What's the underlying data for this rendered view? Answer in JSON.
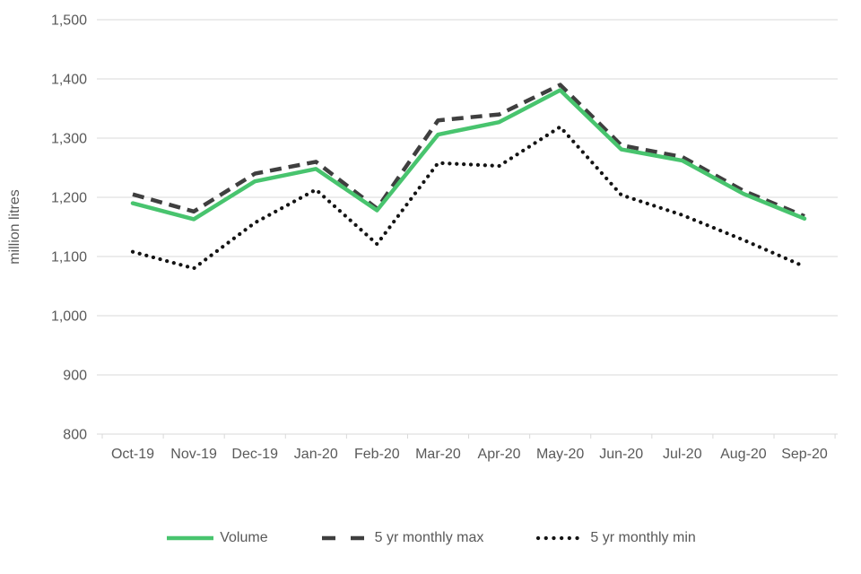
{
  "chart_data": {
    "type": "line",
    "title": "",
    "xlabel": "",
    "ylabel": "million litres",
    "categories": [
      "Oct-19",
      "Nov-19",
      "Dec-19",
      "Jan-20",
      "Feb-20",
      "Mar-20",
      "Apr-20",
      "May-20",
      "Jun-20",
      "Jul-20",
      "Aug-20",
      "Sep-20"
    ],
    "series": [
      {
        "name": "Volume",
        "line_style": "solid",
        "color": "#48c46e",
        "values": [
          1190,
          1163,
          1227,
          1248,
          1178,
          1306,
          1327,
          1381,
          1281,
          1262,
          1206,
          1164
        ]
      },
      {
        "name": "5 yr monthly max",
        "line_style": "dashed",
        "color": "#3f3f3f",
        "values": [
          1205,
          1176,
          1240,
          1260,
          1181,
          1330,
          1340,
          1390,
          1288,
          1268,
          1211,
          1168
        ]
      },
      {
        "name": "5 yr monthly min",
        "line_style": "dotted",
        "color": "#141414",
        "values": [
          1108,
          1080,
          1157,
          1213,
          1121,
          1258,
          1253,
          1319,
          1204,
          1170,
          1128,
          1083
        ]
      }
    ],
    "ylim": [
      800,
      1500
    ],
    "y_ticks": [
      800,
      900,
      1000,
      1100,
      1200,
      1300,
      1400,
      1500
    ],
    "y_tick_labels": [
      "800",
      "900",
      "1,000",
      "1,100",
      "1,200",
      "1,300",
      "1,400",
      "1,500"
    ],
    "grid": "horizontal",
    "legend_position": "bottom",
    "colors": {
      "gridline": "#d9d9d9",
      "axis_text": "#595959",
      "legend_text": "#595959"
    }
  }
}
